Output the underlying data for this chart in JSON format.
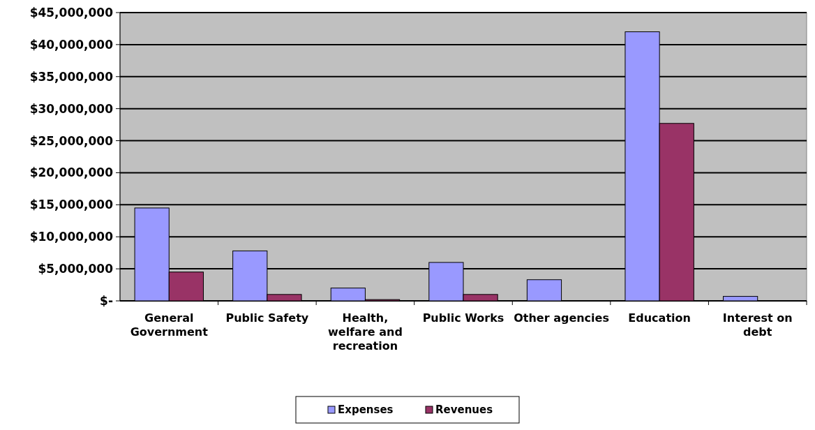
{
  "chart_data": {
    "type": "bar",
    "categories": [
      "General Government",
      "Public Safety",
      "Health, welfare and recreation",
      "Public Works",
      "Other agencies",
      "Education",
      "Interest on debt"
    ],
    "series": [
      {
        "name": "Expenses",
        "color": "#9999ff",
        "values": [
          14500000,
          7800000,
          2000000,
          6000000,
          3300000,
          42000000,
          700000
        ]
      },
      {
        "name": "Revenues",
        "color": "#993366",
        "values": [
          4500000,
          1000000,
          200000,
          1000000,
          0,
          27700000,
          0
        ]
      }
    ],
    "ylim": [
      0,
      45000000
    ],
    "yticks": [
      {
        "value": 0,
        "label": "$-"
      },
      {
        "value": 5000000,
        "label": "$5,000,000"
      },
      {
        "value": 10000000,
        "label": "$10,000,000"
      },
      {
        "value": 15000000,
        "label": "$15,000,000"
      },
      {
        "value": 20000000,
        "label": "$20,000,000"
      },
      {
        "value": 25000000,
        "label": "$25,000,000"
      },
      {
        "value": 30000000,
        "label": "$30,000,000"
      },
      {
        "value": 35000000,
        "label": "$35,000,000"
      },
      {
        "value": 40000000,
        "label": "$40,000,000"
      },
      {
        "value": 45000000,
        "label": "$45,000,000"
      }
    ],
    "grid": "y",
    "legend": "bottom"
  }
}
